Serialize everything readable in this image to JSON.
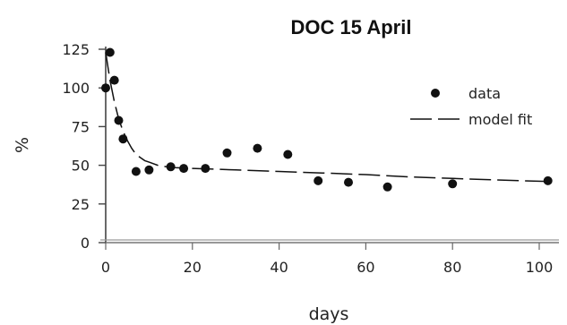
{
  "chart_data": {
    "type": "scatter",
    "title": "DOC 15 April",
    "xlabel": "days",
    "ylabel": "%",
    "xlim": [
      0,
      103
    ],
    "ylim": [
      0,
      125
    ],
    "x_ticks": [
      0,
      20,
      40,
      60,
      80,
      100
    ],
    "y_ticks": [
      0,
      25,
      50,
      75,
      100,
      125
    ],
    "grid": false,
    "legend_position": "top-right",
    "series": [
      {
        "name": "data",
        "kind": "markers",
        "color": "#111111",
        "x": [
          0,
          1,
          2,
          3,
          4,
          7,
          10,
          15,
          18,
          23,
          28,
          35,
          42,
          49,
          56,
          65,
          80,
          102
        ],
        "y": [
          100,
          123,
          105,
          79,
          67,
          46,
          47,
          49,
          48,
          48,
          58,
          61,
          57,
          40,
          39,
          36,
          38,
          40
        ]
      },
      {
        "name": "model fit",
        "kind": "dashed-line",
        "color": "#111111",
        "x": [
          0,
          1,
          2,
          3,
          4,
          5,
          6,
          7,
          8,
          9,
          10,
          12,
          14,
          16,
          20,
          25,
          30,
          40,
          50,
          60,
          70,
          80,
          90,
          102
        ],
        "y": [
          123,
          105,
          91,
          80,
          72,
          66,
          61,
          57,
          55,
          53,
          52,
          50,
          49,
          48.5,
          48,
          47.5,
          47,
          46,
          45,
          44,
          42.5,
          41.5,
          40.5,
          39.5
        ]
      }
    ]
  }
}
